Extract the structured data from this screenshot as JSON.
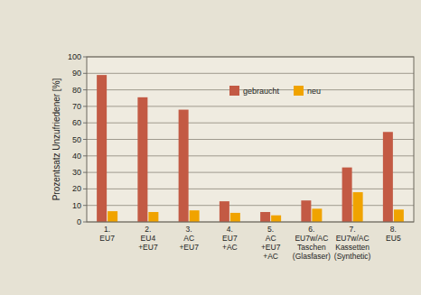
{
  "chart_data": {
    "type": "bar",
    "y_label": "Prozentsatz Unzufriedener [%]",
    "categories": [
      "1.\nEU7",
      "2.\nEU4\n+EU7",
      "3.\nAC\n+EU7",
      "4.\nEU7\n+AC",
      "5.\nAC\n+EU7\n+AC",
      "6.\nEU7w/AC\nTaschen\n(Glasfaser)",
      "7.\nEU7w/AC\nKassetten\n(Synthetic)",
      "8.\nEU5"
    ],
    "series": [
      {
        "name": "gebraucht",
        "color": "#c35a44",
        "values": [
          89,
          75.5,
          68,
          12.5,
          6,
          13,
          33,
          54.5
        ]
      },
      {
        "name": "neu",
        "color": "#f0a300",
        "values": [
          6.5,
          6,
          7,
          5.5,
          4,
          8,
          18,
          7.5
        ]
      }
    ],
    "ylim": [
      0,
      100
    ],
    "yticks": [
      0,
      10,
      20,
      30,
      40,
      50,
      60,
      70,
      80,
      90,
      100
    ],
    "grid": true,
    "legend": "upper center"
  }
}
